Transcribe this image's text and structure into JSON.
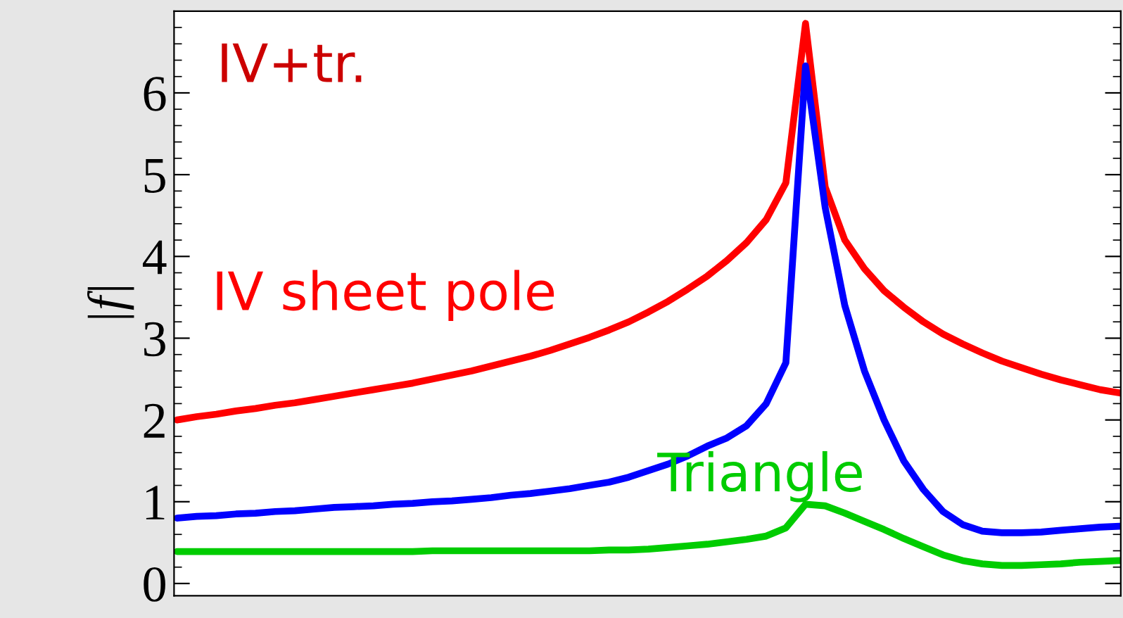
{
  "chart_data": {
    "type": "line",
    "ylabel": "|f|",
    "annotations": [
      "IV+tr."
    ],
    "categories": [
      null,
      null,
      null,
      null,
      null,
      null,
      null,
      null,
      null,
      null,
      null,
      null,
      null,
      null,
      null,
      null,
      null,
      null,
      null,
      null,
      null,
      null,
      null,
      null,
      null,
      null,
      null,
      null,
      null,
      null,
      null,
      null,
      null,
      null,
      null,
      null,
      null,
      null,
      null,
      null,
      null,
      null,
      null,
      null,
      null,
      null,
      null,
      null,
      null
    ],
    "series": [
      {
        "name": "IV sheet pole",
        "color": "#ff0000",
        "values": [
          2.0,
          2.04,
          2.07,
          2.11,
          2.14,
          2.18,
          2.21,
          2.25,
          2.29,
          2.33,
          2.37,
          2.41,
          2.45,
          2.5,
          2.55,
          2.6,
          2.66,
          2.72,
          2.78,
          2.85,
          2.93,
          3.01,
          3.1,
          3.2,
          3.32,
          3.45,
          3.6,
          3.76,
          3.95,
          4.17,
          4.45,
          4.9,
          6.85,
          4.85,
          4.2,
          3.85,
          3.58,
          3.38,
          3.2,
          3.05,
          2.93,
          2.82,
          2.72,
          2.64,
          2.56,
          2.49,
          2.43,
          2.37,
          2.33
        ]
      },
      {
        "color": "#0000ff",
        "values": [
          0.8,
          0.82,
          0.83,
          0.85,
          0.86,
          0.88,
          0.89,
          0.91,
          0.93,
          0.94,
          0.95,
          0.97,
          0.98,
          1.0,
          1.01,
          1.03,
          1.05,
          1.08,
          1.1,
          1.13,
          1.16,
          1.2,
          1.24,
          1.3,
          1.38,
          1.46,
          1.56,
          1.68,
          1.78,
          1.93,
          2.2,
          2.7,
          6.33,
          4.6,
          3.4,
          2.6,
          2.0,
          1.5,
          1.15,
          0.88,
          0.72,
          0.64,
          0.62,
          0.62,
          0.63,
          0.65,
          0.67,
          0.69,
          0.7
        ]
      },
      {
        "name": "Triangle",
        "color": "#00cc00",
        "values": [
          0.39,
          0.39,
          0.39,
          0.39,
          0.39,
          0.39,
          0.39,
          0.39,
          0.39,
          0.39,
          0.39,
          0.39,
          0.39,
          0.4,
          0.4,
          0.4,
          0.4,
          0.4,
          0.4,
          0.4,
          0.4,
          0.4,
          0.41,
          0.41,
          0.42,
          0.44,
          0.46,
          0.48,
          0.51,
          0.54,
          0.58,
          0.68,
          0.97,
          0.95,
          0.86,
          0.76,
          0.66,
          0.55,
          0.45,
          0.35,
          0.28,
          0.24,
          0.22,
          0.22,
          0.23,
          0.24,
          0.26,
          0.27,
          0.28
        ]
      }
    ],
    "ylim": [
      -0.15,
      7.0
    ],
    "yticks": [
      0,
      1,
      2,
      3,
      4,
      5,
      6
    ],
    "tick_labels": "y",
    "grid": false,
    "legend": false,
    "line_style": "solid"
  }
}
